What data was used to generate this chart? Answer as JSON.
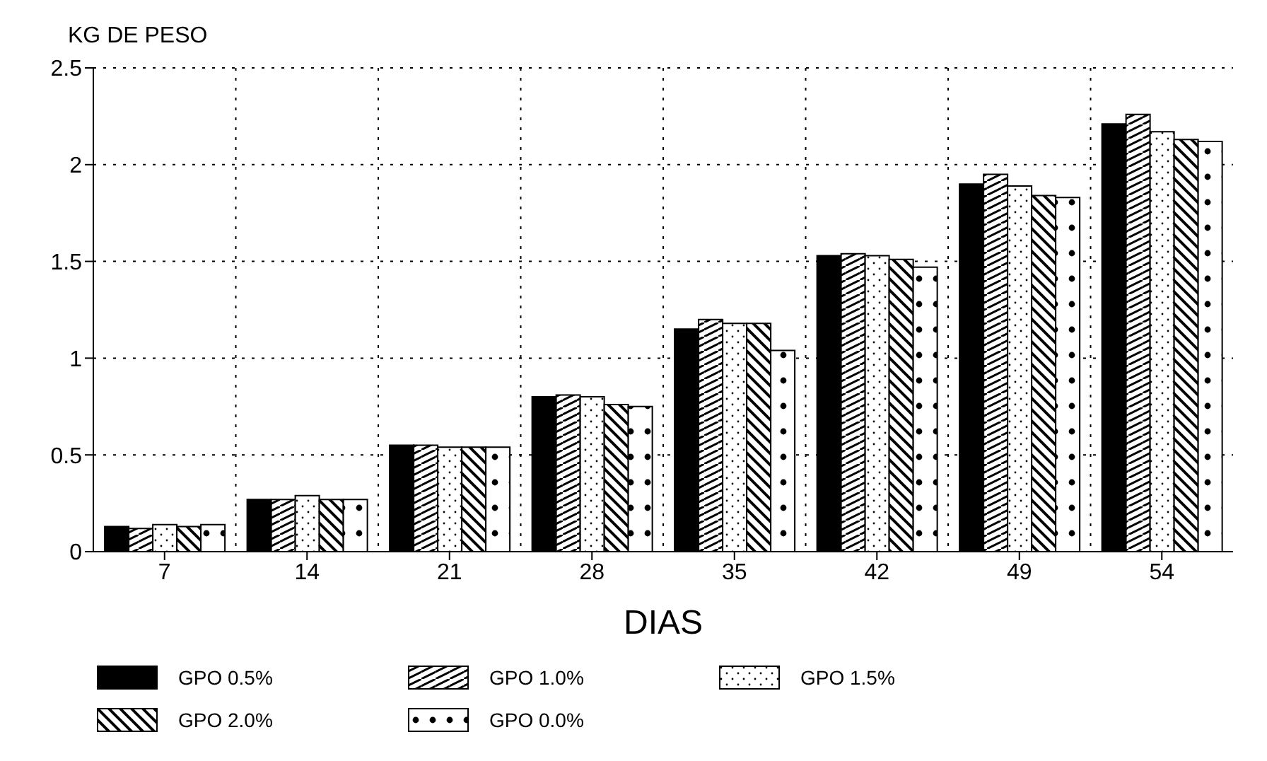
{
  "chart_data": {
    "type": "bar",
    "ylabel": "KG DE PESO",
    "xlabel": "DIAS",
    "categories": [
      "7",
      "14",
      "21",
      "28",
      "35",
      "42",
      "49",
      "54"
    ],
    "series": [
      {
        "name": "GPO 0.5%",
        "color": "#000000",
        "values": [
          0.13,
          0.27,
          0.55,
          0.8,
          1.15,
          1.53,
          1.9,
          2.21
        ]
      },
      {
        "name": "GPO 1.0%",
        "color": "#000000",
        "values": [
          0.12,
          0.27,
          0.55,
          0.81,
          1.2,
          1.54,
          1.95,
          2.26
        ]
      },
      {
        "name": "GPO 1.5%",
        "color": "#000000",
        "values": [
          0.14,
          0.29,
          0.54,
          0.8,
          1.18,
          1.53,
          1.89,
          2.17
        ]
      },
      {
        "name": "GPO 2.0%",
        "color": "#000000",
        "values": [
          0.13,
          0.27,
          0.54,
          0.76,
          1.18,
          1.51,
          1.84,
          2.13
        ]
      },
      {
        "name": "GPO 0.0%",
        "color": "#000000",
        "values": [
          0.14,
          0.27,
          0.54,
          0.75,
          1.04,
          1.47,
          1.83,
          2.12
        ]
      }
    ],
    "ylim": [
      0,
      2.5
    ],
    "yticks": [
      0,
      0.5,
      1,
      1.5,
      2,
      2.5
    ],
    "grid": true,
    "legend": "bottom"
  }
}
